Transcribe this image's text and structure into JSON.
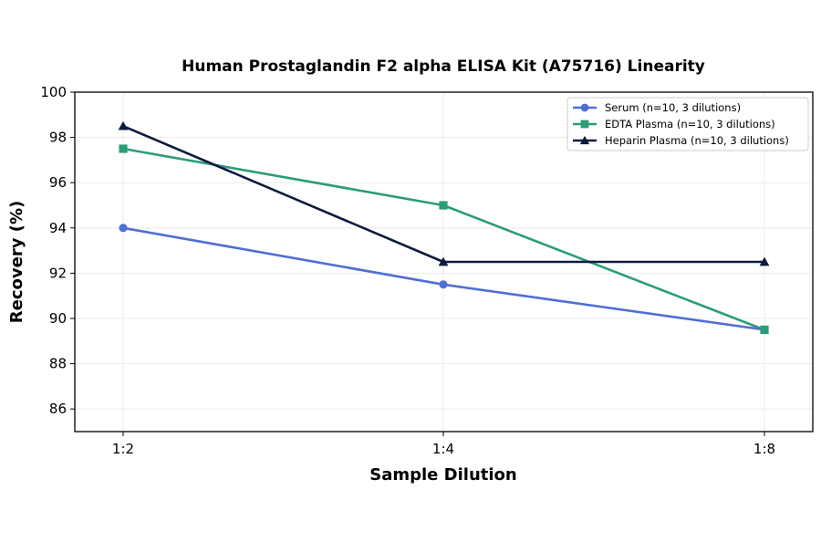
{
  "chart_data": {
    "type": "line",
    "title": "Human Prostaglandin F2 alpha ELISA Kit (A75716) Linearity",
    "xlabel": "Sample Dilution",
    "ylabel": "Recovery (%)",
    "categories": [
      "1:2",
      "1:4",
      "1:8"
    ],
    "ylim": [
      85,
      100
    ],
    "yticks": [
      86,
      88,
      90,
      92,
      94,
      96,
      98,
      100
    ],
    "grid": true,
    "legend_position": "top-right",
    "series": [
      {
        "name": "Serum (n=10, 3 dilutions)",
        "values": [
          94,
          91.5,
          89.5
        ],
        "color": "#4f6fd6",
        "marker": "circle"
      },
      {
        "name": "EDTA Plasma (n=10, 3 dilutions)",
        "values": [
          97.5,
          95,
          89.5
        ],
        "color": "#2a9d76",
        "marker": "square"
      },
      {
        "name": "Heparin Plasma (n=10, 3 dilutions)",
        "values": [
          98.5,
          92.5,
          92.5
        ],
        "color": "#0d1b3e",
        "marker": "triangle"
      }
    ]
  }
}
